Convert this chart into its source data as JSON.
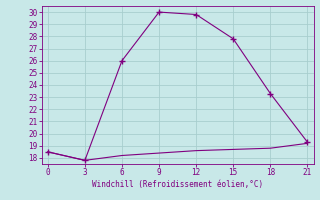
{
  "line1_x": [
    0,
    3,
    6,
    9,
    12,
    15,
    18,
    21
  ],
  "line1_y": [
    18.5,
    17.8,
    26.0,
    30.0,
    29.8,
    27.8,
    23.3,
    19.3
  ],
  "line2_x": [
    0,
    3,
    6,
    9,
    12,
    15,
    18,
    21
  ],
  "line2_y": [
    18.5,
    17.8,
    18.2,
    18.4,
    18.6,
    18.7,
    18.8,
    19.2
  ],
  "line_color": "#800080",
  "bg_color": "#c8e8e8",
  "grid_color": "#a8cece",
  "xlabel": "Windchill (Refroidissement éolien,°C)",
  "xlim": [
    -0.5,
    21.5
  ],
  "ylim": [
    17.5,
    30.5
  ],
  "xticks": [
    0,
    3,
    6,
    9,
    12,
    15,
    18,
    21
  ],
  "yticks": [
    18,
    19,
    20,
    21,
    22,
    23,
    24,
    25,
    26,
    27,
    28,
    29,
    30
  ],
  "xlabel_color": "#800080",
  "tick_color": "#800080"
}
